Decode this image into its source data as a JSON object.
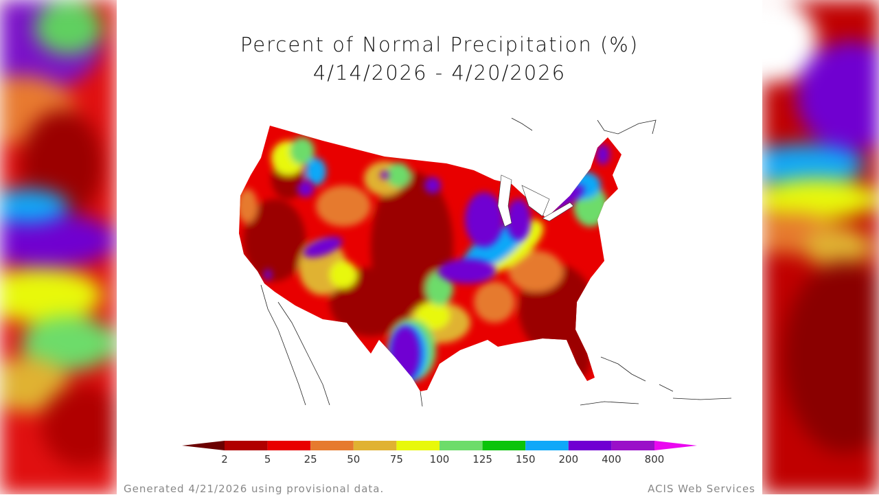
{
  "title": "Percent of Normal Precipitation (%)",
  "date_range": "4/14/2026 - 4/20/2026",
  "legend": {
    "ticks": [
      "2",
      "5",
      "25",
      "50",
      "75",
      "100",
      "125",
      "150",
      "200",
      "400",
      "800"
    ],
    "colors": [
      "#6b0000",
      "#b00000",
      "#e80000",
      "#e67a2e",
      "#e0b232",
      "#e8f80a",
      "#6ddc6a",
      "#0ac40a",
      "#10a8f8",
      "#7000d2",
      "#9a10c8",
      "#ea08f0"
    ]
  },
  "footer": {
    "generated": "Generated 4/21/2026 using provisional data.",
    "source": "ACIS Web Services"
  }
}
